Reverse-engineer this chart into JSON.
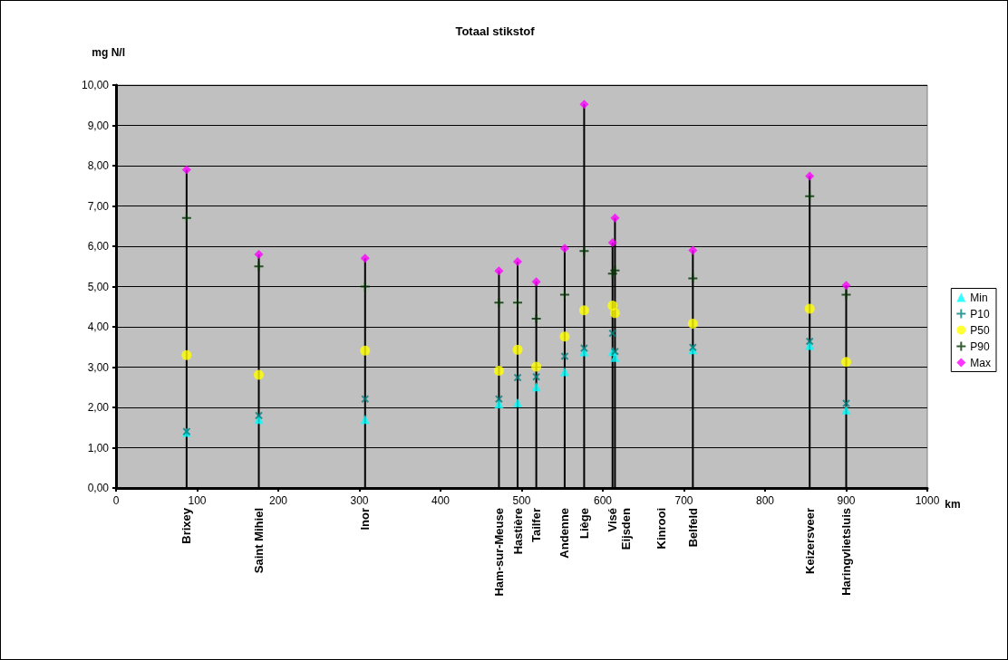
{
  "chart_data": {
    "type": "scatter",
    "title": "Totaal stikstof",
    "ylabel": "mg N/l",
    "xlabel": "km",
    "xlim": [
      0,
      1000
    ],
    "xticks": [
      0,
      100,
      200,
      300,
      400,
      500,
      600,
      700,
      800,
      900,
      1000
    ],
    "ylim": [
      0,
      10
    ],
    "yticks": [
      {
        "value": 0,
        "label": "0,00"
      },
      {
        "value": 1,
        "label": "1,00"
      },
      {
        "value": 2,
        "label": "2,00"
      },
      {
        "value": 3,
        "label": "3,00"
      },
      {
        "value": 4,
        "label": "4,00"
      },
      {
        "value": 5,
        "label": "5,00"
      },
      {
        "value": 6,
        "label": "6,00"
      },
      {
        "value": 7,
        "label": "7,00"
      },
      {
        "value": 8,
        "label": "8,00"
      },
      {
        "value": 9,
        "label": "9,00"
      },
      {
        "value": 10,
        "label": "10,00"
      }
    ],
    "grid": "y",
    "legend": "right",
    "x": [
      87,
      176,
      307,
      472,
      495,
      518,
      553,
      577,
      612,
      615,
      672,
      711,
      855,
      900
    ],
    "series": [
      {
        "name": "Min",
        "color": "#00ffff",
        "marker": "triangle",
        "values": [
          1.38,
          1.7,
          1.7,
          2.09,
          2.12,
          2.51,
          2.89,
          3.38,
          3.39,
          3.24,
          null,
          3.43,
          3.54,
          1.94
        ]
      },
      {
        "name": "P10",
        "color": "#008080",
        "marker": "x",
        "values": [
          1.4,
          1.8,
          2.21,
          2.21,
          2.74,
          2.76,
          3.27,
          3.47,
          3.84,
          3.39,
          null,
          3.49,
          3.64,
          2.1
        ]
      },
      {
        "name": "P50",
        "color": "#ffff00",
        "marker": "circle",
        "values": [
          3.3,
          2.81,
          3.41,
          2.91,
          3.43,
          3.01,
          3.76,
          4.41,
          4.53,
          4.34,
          null,
          4.08,
          4.45,
          3.13
        ]
      },
      {
        "name": "P90",
        "color": "#003300",
        "marker": "cross",
        "values": [
          6.7,
          5.5,
          5.0,
          4.6,
          4.6,
          4.2,
          4.8,
          5.88,
          5.32,
          5.4,
          null,
          5.2,
          7.24,
          4.8
        ]
      },
      {
        "name": "Max",
        "type": "lollipop",
        "color": "#ff00ff",
        "marker": "diamond",
        "values": [
          7.9,
          5.8,
          5.7,
          5.39,
          5.62,
          5.12,
          5.95,
          9.52,
          6.09,
          6.7,
          null,
          5.9,
          7.74,
          5.03
        ]
      }
    ],
    "annotations": [
      "Brixey",
      "Saint Mihiel",
      "Inor",
      "Ham-sur-Meuse",
      "Hastière",
      "Tailfer",
      "Andenne",
      "Liège",
      "Visé",
      "Eijsden",
      "Kinrooi",
      "Belfeld",
      "Keizersveer",
      "Haringvlietsluis"
    ]
  }
}
